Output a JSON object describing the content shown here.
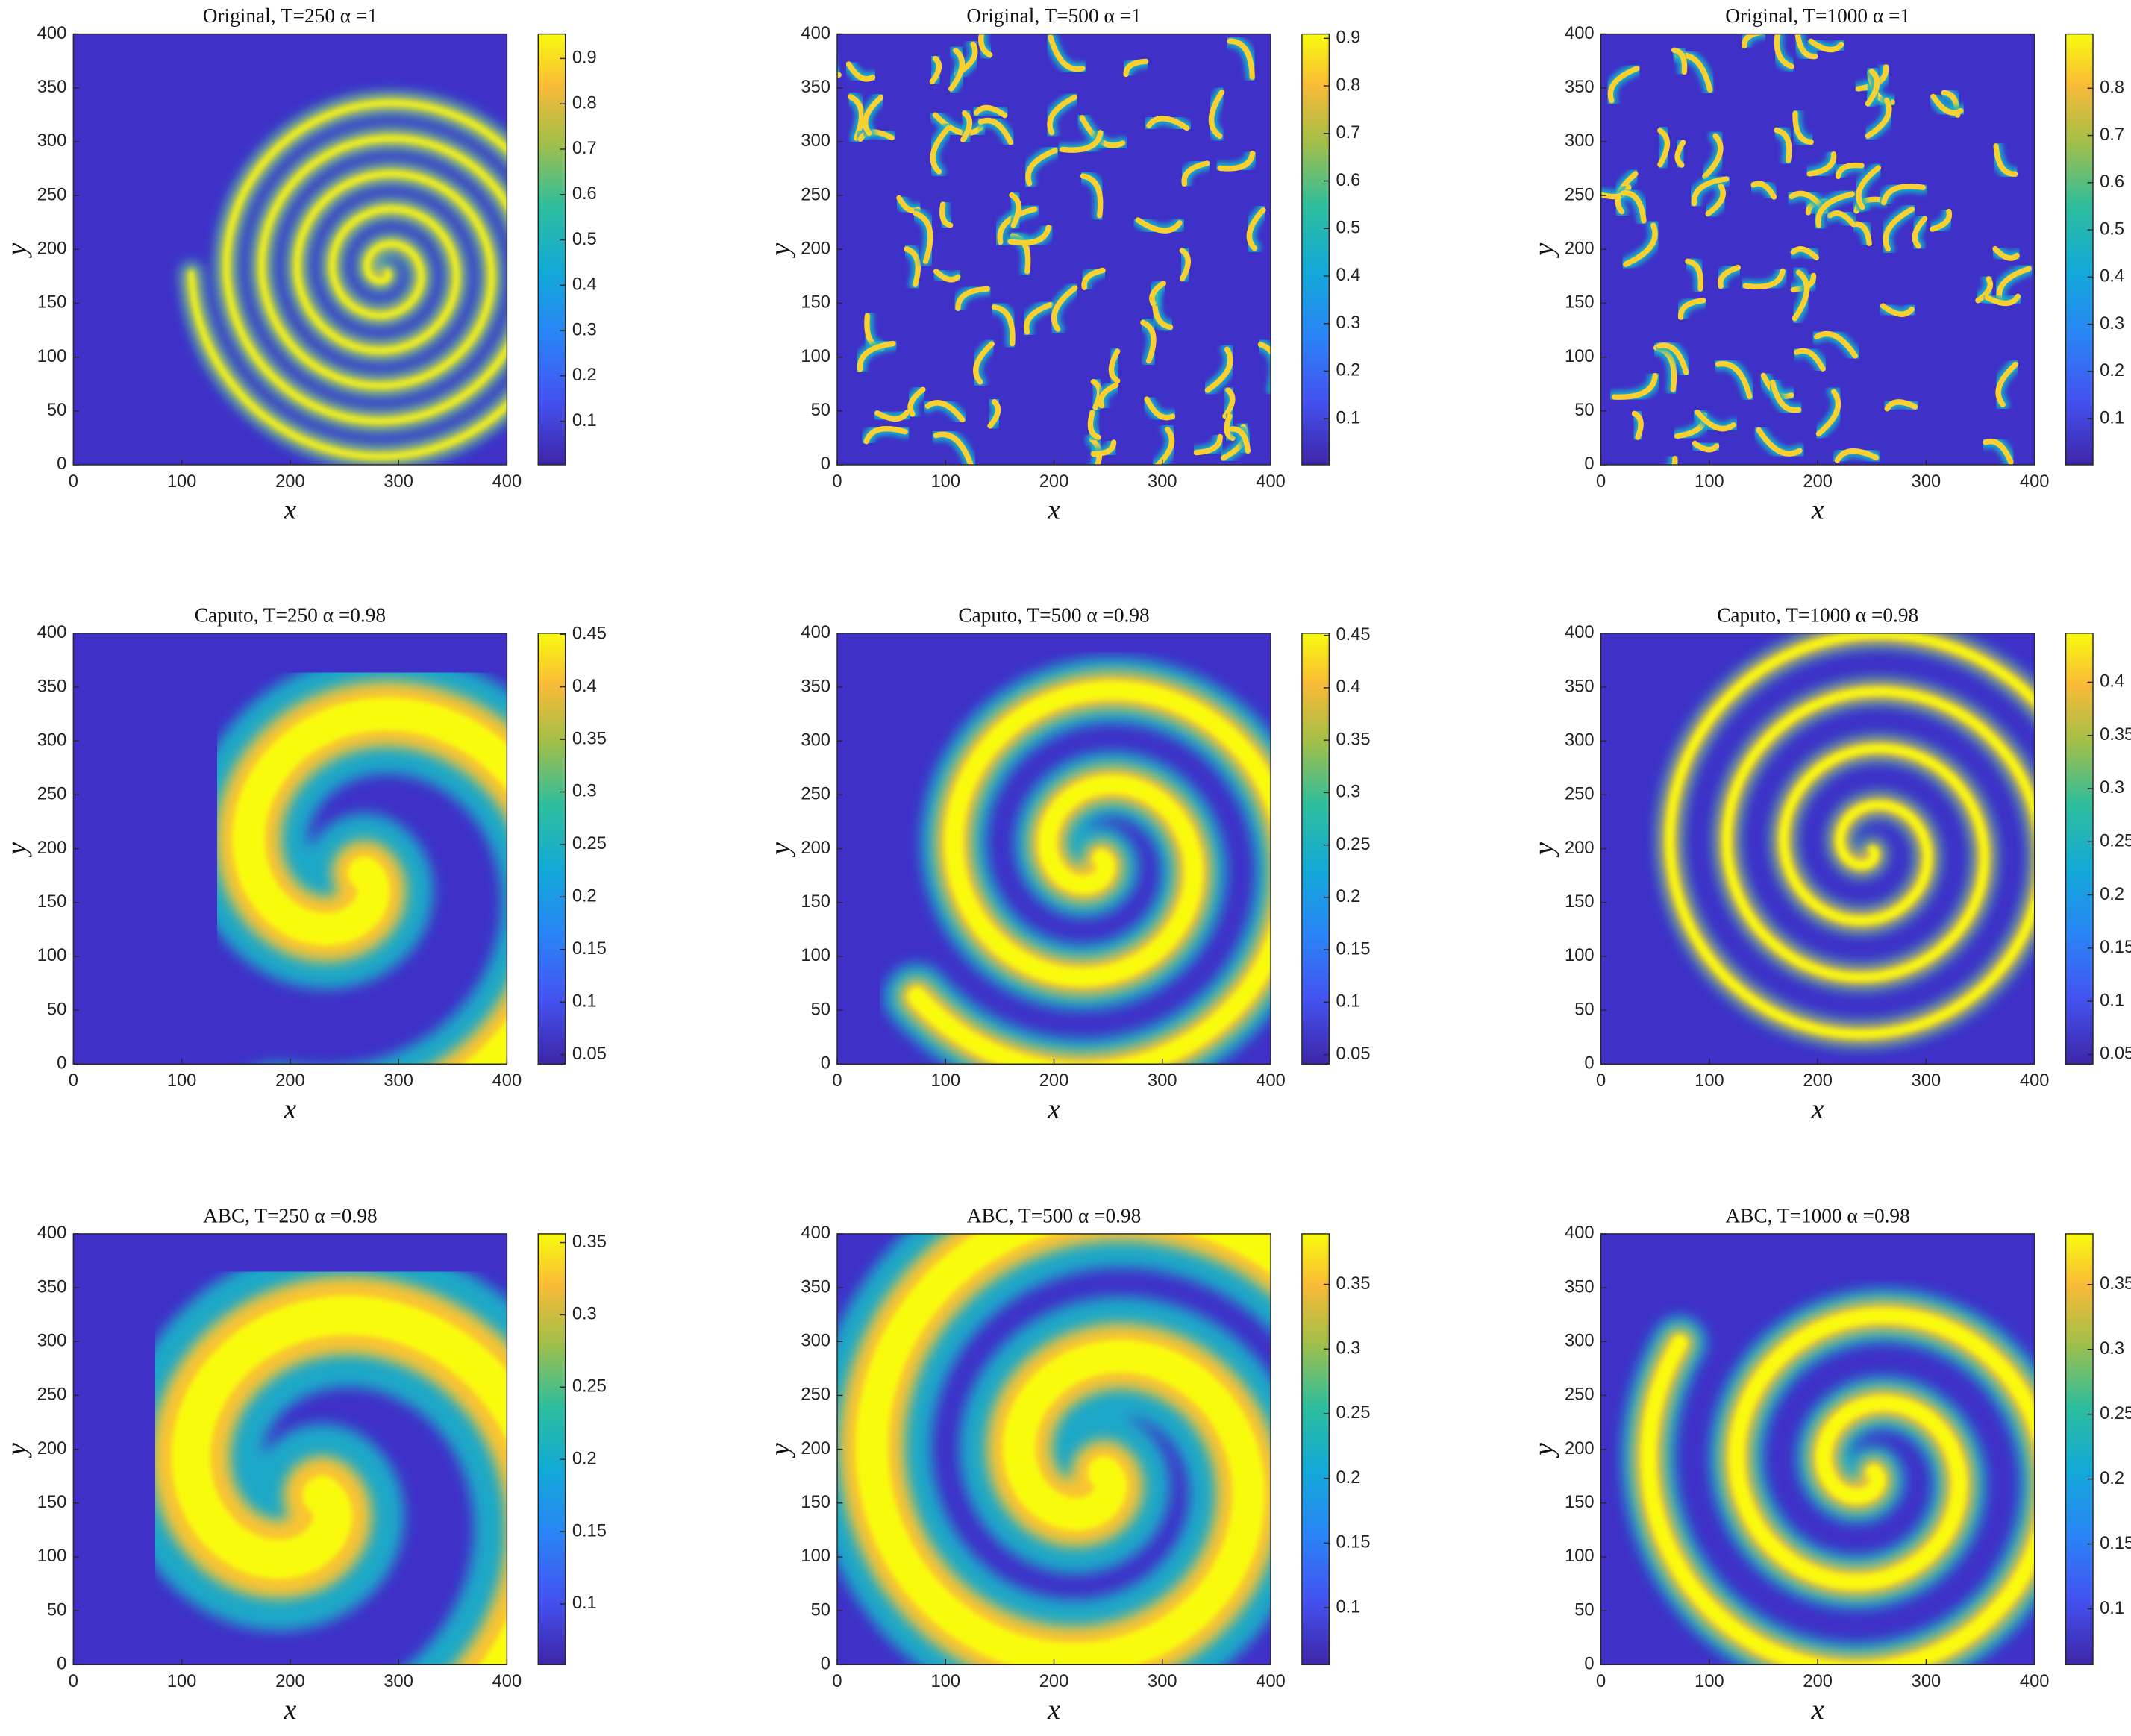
{
  "chart_data": [
    {
      "type": "heatmap",
      "title": "Original, T=250 α =1",
      "xlabel": "x",
      "ylabel": "y",
      "xlim": [
        0,
        400
      ],
      "ylim": [
        0,
        400
      ],
      "xticks": [
        0,
        100,
        200,
        300,
        400
      ],
      "yticks": [
        0,
        50,
        100,
        150,
        200,
        250,
        300,
        350,
        400
      ],
      "colormap": "parula",
      "clim": [
        0.004,
        0.954
      ],
      "cticks": [
        0.1,
        0.2,
        0.3,
        0.4,
        0.5,
        0.6,
        0.7,
        0.8,
        0.9
      ]
    },
    {
      "type": "heatmap",
      "title": "Original, T=500 α =1",
      "xlabel": "x",
      "ylabel": "y",
      "xlim": [
        0,
        400
      ],
      "ylim": [
        0,
        400
      ],
      "xticks": [
        0,
        100,
        200,
        300,
        400
      ],
      "yticks": [
        0,
        50,
        100,
        150,
        200,
        250,
        300,
        350,
        400
      ],
      "colormap": "parula",
      "clim": [
        0.003,
        0.909
      ],
      "cticks": [
        0.1,
        0.2,
        0.3,
        0.4,
        0.5,
        0.6,
        0.7,
        0.8,
        0.9
      ]
    },
    {
      "type": "heatmap",
      "title": "Original, T=1000 α =1",
      "xlabel": "x",
      "ylabel": "y",
      "xlim": [
        0,
        400
      ],
      "ylim": [
        0,
        400
      ],
      "xticks": [
        0,
        100,
        200,
        300,
        400
      ],
      "yticks": [
        0,
        50,
        100,
        150,
        200,
        250,
        300,
        350,
        400
      ],
      "colormap": "parula",
      "clim": [
        0.002,
        0.915
      ],
      "cticks": [
        0.1,
        0.2,
        0.3,
        0.4,
        0.5,
        0.6,
        0.7,
        0.8
      ]
    },
    {
      "type": "heatmap",
      "title": "Caputo, T=250 α =0.98",
      "xlabel": "x",
      "ylabel": "y",
      "xlim": [
        0,
        400
      ],
      "ylim": [
        0,
        400
      ],
      "xticks": [
        0,
        100,
        200,
        300,
        400
      ],
      "yticks": [
        0,
        50,
        100,
        150,
        200,
        250,
        300,
        350,
        400
      ],
      "colormap": "parula",
      "clim": [
        0.041,
        0.451
      ],
      "cticks": [
        0.05,
        0.1,
        0.15,
        0.2,
        0.25,
        0.3,
        0.35,
        0.4,
        0.45
      ]
    },
    {
      "type": "heatmap",
      "title": "Caputo, T=500 α =0.98",
      "xlabel": "x",
      "ylabel": "y",
      "xlim": [
        0,
        400
      ],
      "ylim": [
        0,
        400
      ],
      "xticks": [
        0,
        100,
        200,
        300,
        400
      ],
      "yticks": [
        0,
        50,
        100,
        150,
        200,
        250,
        300,
        350,
        400
      ],
      "colormap": "parula",
      "clim": [
        0.041,
        0.452
      ],
      "cticks": [
        0.05,
        0.1,
        0.15,
        0.2,
        0.25,
        0.3,
        0.35,
        0.4,
        0.45
      ]
    },
    {
      "type": "heatmap",
      "title": "Caputo, T=1000 α =0.98",
      "xlabel": "x",
      "ylabel": "y",
      "xlim": [
        0,
        400
      ],
      "ylim": [
        0,
        400
      ],
      "xticks": [
        0,
        100,
        200,
        300,
        400
      ],
      "yticks": [
        0,
        50,
        100,
        150,
        200,
        250,
        300,
        350,
        400
      ],
      "colormap": "parula",
      "clim": [
        0.041,
        0.446
      ],
      "cticks": [
        0.05,
        0.1,
        0.15,
        0.2,
        0.25,
        0.3,
        0.35,
        0.4
      ]
    },
    {
      "type": "heatmap",
      "title": "ABC, T=250 α =0.98",
      "xlabel": "x",
      "ylabel": "y",
      "xlim": [
        0,
        400
      ],
      "ylim": [
        0,
        400
      ],
      "xticks": [
        0,
        100,
        200,
        300,
        400
      ],
      "yticks": [
        0,
        50,
        100,
        150,
        200,
        250,
        300,
        350,
        400
      ],
      "colormap": "parula",
      "clim": [
        0.058,
        0.356
      ],
      "cticks": [
        0.1,
        0.15,
        0.2,
        0.25,
        0.3,
        0.35
      ]
    },
    {
      "type": "heatmap",
      "title": "ABC, T=500 α =0.98",
      "xlabel": "x",
      "ylabel": "y",
      "xlim": [
        0,
        400
      ],
      "ylim": [
        0,
        400
      ],
      "xticks": [
        0,
        100,
        200,
        300,
        400
      ],
      "yticks": [
        0,
        50,
        100,
        150,
        200,
        250,
        300,
        350,
        400
      ],
      "colormap": "parula",
      "clim": [
        0.056,
        0.389
      ],
      "cticks": [
        0.1,
        0.15,
        0.2,
        0.25,
        0.3,
        0.35
      ]
    },
    {
      "type": "heatmap",
      "title": "ABC, T=1000 α =0.98",
      "xlabel": "x",
      "ylabel": "y",
      "xlim": [
        0,
        400
      ],
      "ylim": [
        0,
        400
      ],
      "xticks": [
        0,
        100,
        200,
        300,
        400
      ],
      "yticks": [
        0,
        50,
        100,
        150,
        200,
        250,
        300,
        350,
        400
      ],
      "colormap": "parula",
      "clim": [
        0.057,
        0.389
      ],
      "cticks": [
        0.1,
        0.15,
        0.2,
        0.25,
        0.3,
        0.35
      ]
    }
  ]
}
